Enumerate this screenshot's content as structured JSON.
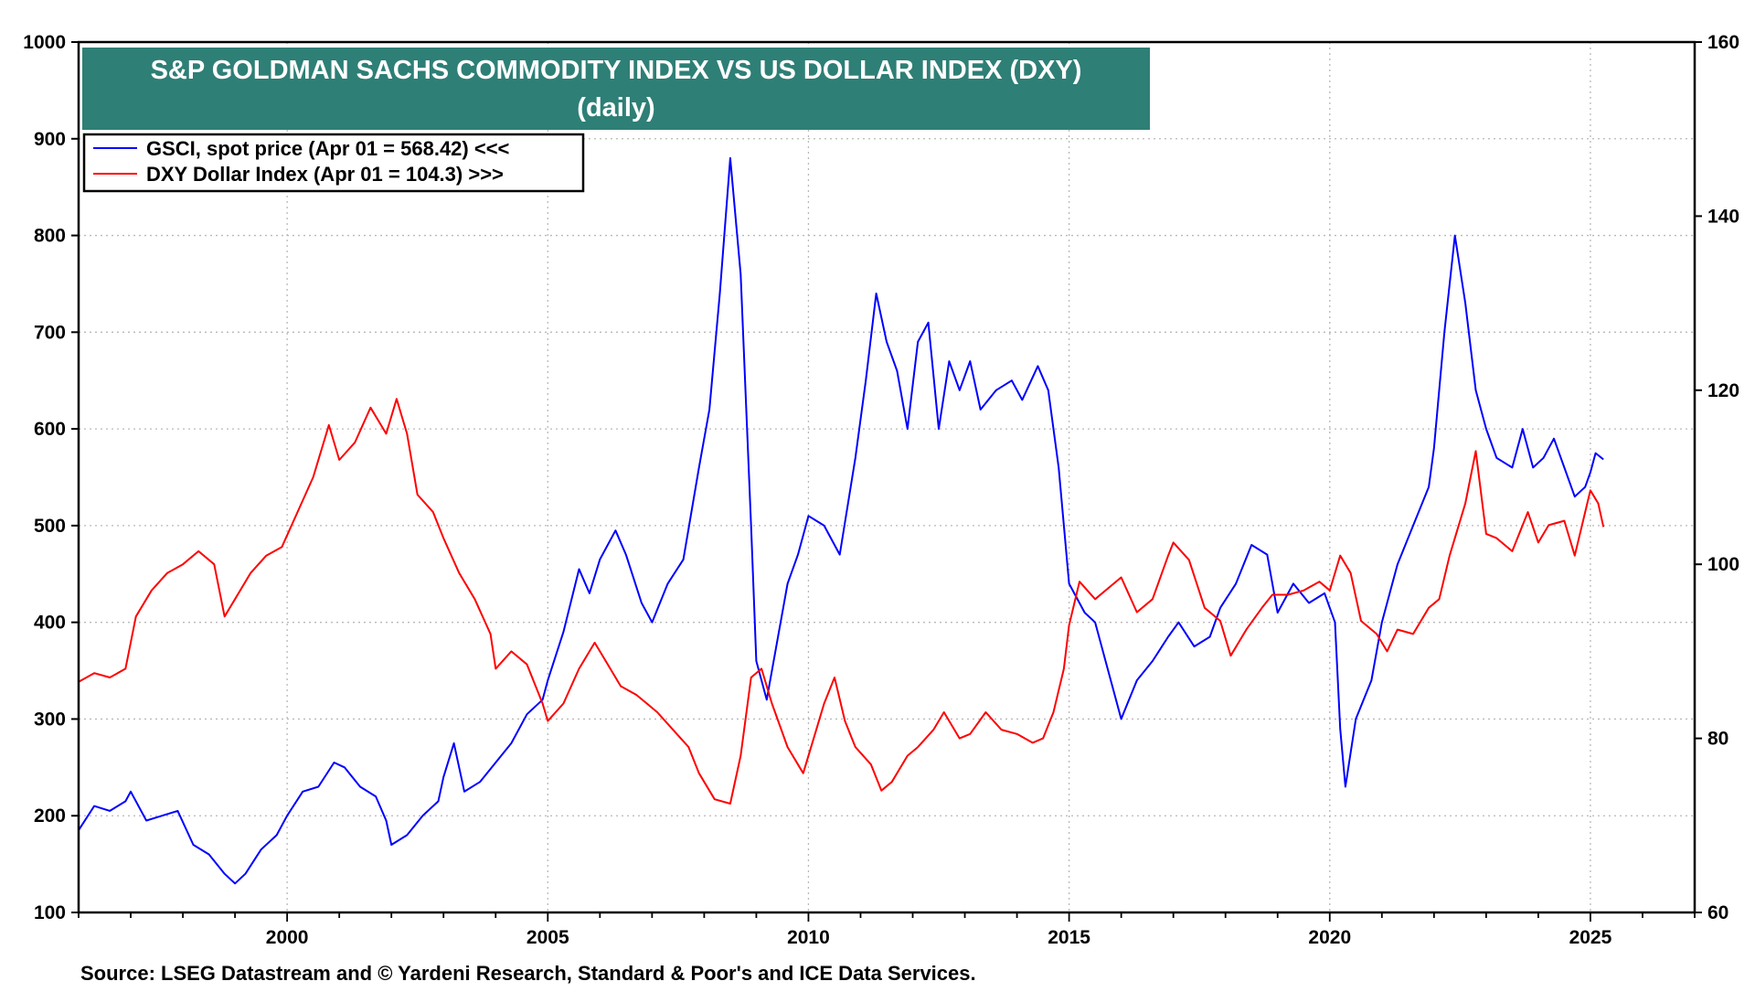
{
  "chart_data": {
    "type": "line",
    "title": "S&P GOLDMAN SACHS COMMODITY INDEX VS US DOLLAR INDEX (DXY)",
    "subtitle": "(daily)",
    "source": "Source: LSEG Datastream and © Yardeni Research, Standard & Poor's and ICE Data Services.",
    "x_range": [
      1996.0,
      2027.0
    ],
    "x_ticks": [
      2000,
      2005,
      2010,
      2015,
      2020,
      2025
    ],
    "grid": true,
    "legend_placement": "top-left",
    "y_left": {
      "range": [
        100,
        1000
      ],
      "ticks": [
        100,
        200,
        300,
        400,
        500,
        600,
        700,
        800,
        900,
        1000
      ]
    },
    "y_right": {
      "range": [
        60,
        160
      ],
      "ticks": [
        60,
        80,
        100,
        120,
        140,
        160
      ]
    },
    "series": [
      {
        "name": "GSCI, spot price (Apr 01 = 568.42) <<<",
        "axis": "left",
        "color": "#0000ff",
        "points": [
          [
            1996.0,
            185
          ],
          [
            1996.3,
            210
          ],
          [
            1996.6,
            205
          ],
          [
            1996.9,
            215
          ],
          [
            1997.0,
            225
          ],
          [
            1997.3,
            195
          ],
          [
            1997.6,
            200
          ],
          [
            1997.9,
            205
          ],
          [
            1998.2,
            170
          ],
          [
            1998.5,
            160
          ],
          [
            1998.8,
            140
          ],
          [
            1999.0,
            130
          ],
          [
            1999.2,
            140
          ],
          [
            1999.5,
            165
          ],
          [
            1999.8,
            180
          ],
          [
            2000.0,
            200
          ],
          [
            2000.3,
            225
          ],
          [
            2000.6,
            230
          ],
          [
            2000.9,
            255
          ],
          [
            2001.1,
            250
          ],
          [
            2001.4,
            230
          ],
          [
            2001.7,
            220
          ],
          [
            2001.9,
            195
          ],
          [
            2002.0,
            170
          ],
          [
            2002.3,
            180
          ],
          [
            2002.6,
            200
          ],
          [
            2002.9,
            215
          ],
          [
            2003.0,
            240
          ],
          [
            2003.2,
            275
          ],
          [
            2003.4,
            225
          ],
          [
            2003.7,
            235
          ],
          [
            2004.0,
            255
          ],
          [
            2004.3,
            275
          ],
          [
            2004.6,
            305
          ],
          [
            2004.9,
            320
          ],
          [
            2005.0,
            340
          ],
          [
            2005.3,
            390
          ],
          [
            2005.6,
            455
          ],
          [
            2005.8,
            430
          ],
          [
            2006.0,
            465
          ],
          [
            2006.3,
            495
          ],
          [
            2006.5,
            470
          ],
          [
            2006.8,
            420
          ],
          [
            2007.0,
            400
          ],
          [
            2007.3,
            440
          ],
          [
            2007.6,
            465
          ],
          [
            2007.9,
            560
          ],
          [
            2008.1,
            620
          ],
          [
            2008.3,
            740
          ],
          [
            2008.5,
            880
          ],
          [
            2008.7,
            760
          ],
          [
            2008.9,
            500
          ],
          [
            2009.0,
            360
          ],
          [
            2009.2,
            320
          ],
          [
            2009.4,
            380
          ],
          [
            2009.6,
            440
          ],
          [
            2009.8,
            470
          ],
          [
            2010.0,
            510
          ],
          [
            2010.3,
            500
          ],
          [
            2010.6,
            470
          ],
          [
            2010.9,
            570
          ],
          [
            2011.1,
            650
          ],
          [
            2011.3,
            740
          ],
          [
            2011.5,
            690
          ],
          [
            2011.7,
            660
          ],
          [
            2011.9,
            600
          ],
          [
            2012.1,
            690
          ],
          [
            2012.3,
            710
          ],
          [
            2012.5,
            600
          ],
          [
            2012.7,
            670
          ],
          [
            2012.9,
            640
          ],
          [
            2013.1,
            670
          ],
          [
            2013.3,
            620
          ],
          [
            2013.6,
            640
          ],
          [
            2013.9,
            650
          ],
          [
            2014.1,
            630
          ],
          [
            2014.4,
            665
          ],
          [
            2014.6,
            640
          ],
          [
            2014.8,
            560
          ],
          [
            2014.9,
            500
          ],
          [
            2015.0,
            440
          ],
          [
            2015.3,
            410
          ],
          [
            2015.5,
            400
          ],
          [
            2015.8,
            340
          ],
          [
            2016.0,
            300
          ],
          [
            2016.3,
            340
          ],
          [
            2016.6,
            360
          ],
          [
            2016.9,
            385
          ],
          [
            2017.1,
            400
          ],
          [
            2017.4,
            375
          ],
          [
            2017.7,
            385
          ],
          [
            2017.9,
            415
          ],
          [
            2018.2,
            440
          ],
          [
            2018.5,
            480
          ],
          [
            2018.8,
            470
          ],
          [
            2019.0,
            410
          ],
          [
            2019.3,
            440
          ],
          [
            2019.6,
            420
          ],
          [
            2019.9,
            430
          ],
          [
            2020.1,
            400
          ],
          [
            2020.2,
            290
          ],
          [
            2020.3,
            230
          ],
          [
            2020.5,
            300
          ],
          [
            2020.8,
            340
          ],
          [
            2021.0,
            400
          ],
          [
            2021.3,
            460
          ],
          [
            2021.6,
            500
          ],
          [
            2021.9,
            540
          ],
          [
            2022.0,
            580
          ],
          [
            2022.2,
            700
          ],
          [
            2022.4,
            800
          ],
          [
            2022.6,
            730
          ],
          [
            2022.8,
            640
          ],
          [
            2023.0,
            600
          ],
          [
            2023.2,
            570
          ],
          [
            2023.5,
            560
          ],
          [
            2023.7,
            600
          ],
          [
            2023.9,
            560
          ],
          [
            2024.1,
            570
          ],
          [
            2024.3,
            590
          ],
          [
            2024.5,
            560
          ],
          [
            2024.7,
            530
          ],
          [
            2024.9,
            540
          ],
          [
            2025.0,
            555
          ],
          [
            2025.1,
            575
          ],
          [
            2025.25,
            568.42
          ]
        ]
      },
      {
        "name": "DXY Dollar Index (Apr 01 = 104.3) >>>",
        "axis": "right",
        "color": "#ff0000",
        "points": [
          [
            1996.0,
            86.5
          ],
          [
            1996.3,
            87.5
          ],
          [
            1996.6,
            87.0
          ],
          [
            1996.9,
            88.0
          ],
          [
            1997.1,
            94.0
          ],
          [
            1997.4,
            97.0
          ],
          [
            1997.7,
            99.0
          ],
          [
            1998.0,
            100.0
          ],
          [
            1998.3,
            101.5
          ],
          [
            1998.6,
            100.0
          ],
          [
            1998.8,
            94.0
          ],
          [
            1999.0,
            96.0
          ],
          [
            1999.3,
            99.0
          ],
          [
            1999.6,
            101.0
          ],
          [
            1999.9,
            102.0
          ],
          [
            2000.2,
            106.0
          ],
          [
            2000.5,
            110.0
          ],
          [
            2000.8,
            116.0
          ],
          [
            2001.0,
            112.0
          ],
          [
            2001.3,
            114.0
          ],
          [
            2001.6,
            118.0
          ],
          [
            2001.9,
            115.0
          ],
          [
            2002.1,
            119.0
          ],
          [
            2002.3,
            115.0
          ],
          [
            2002.5,
            108.0
          ],
          [
            2002.8,
            106.0
          ],
          [
            2003.0,
            103.0
          ],
          [
            2003.3,
            99.0
          ],
          [
            2003.6,
            96.0
          ],
          [
            2003.9,
            92.0
          ],
          [
            2004.0,
            88.0
          ],
          [
            2004.3,
            90.0
          ],
          [
            2004.6,
            88.5
          ],
          [
            2004.9,
            84.0
          ],
          [
            2005.0,
            82.0
          ],
          [
            2005.3,
            84.0
          ],
          [
            2005.6,
            88.0
          ],
          [
            2005.9,
            91.0
          ],
          [
            2006.1,
            89.0
          ],
          [
            2006.4,
            86.0
          ],
          [
            2006.7,
            85.0
          ],
          [
            2006.9,
            84.0
          ],
          [
            2007.1,
            83.0
          ],
          [
            2007.4,
            81.0
          ],
          [
            2007.7,
            79.0
          ],
          [
            2007.9,
            76.0
          ],
          [
            2008.2,
            73.0
          ],
          [
            2008.5,
            72.5
          ],
          [
            2008.7,
            78.0
          ],
          [
            2008.9,
            87.0
          ],
          [
            2009.1,
            88.0
          ],
          [
            2009.3,
            84.0
          ],
          [
            2009.6,
            79.0
          ],
          [
            2009.9,
            76.0
          ],
          [
            2010.1,
            80.0
          ],
          [
            2010.3,
            84.0
          ],
          [
            2010.5,
            87.0
          ],
          [
            2010.7,
            82.0
          ],
          [
            2010.9,
            79.0
          ],
          [
            2011.2,
            77.0
          ],
          [
            2011.4,
            74.0
          ],
          [
            2011.6,
            75.0
          ],
          [
            2011.9,
            78.0
          ],
          [
            2012.1,
            79.0
          ],
          [
            2012.4,
            81.0
          ],
          [
            2012.6,
            83.0
          ],
          [
            2012.9,
            80.0
          ],
          [
            2013.1,
            80.5
          ],
          [
            2013.4,
            83.0
          ],
          [
            2013.7,
            81.0
          ],
          [
            2014.0,
            80.5
          ],
          [
            2014.3,
            79.5
          ],
          [
            2014.5,
            80.0
          ],
          [
            2014.7,
            83.0
          ],
          [
            2014.9,
            88.0
          ],
          [
            2015.0,
            93.0
          ],
          [
            2015.2,
            98.0
          ],
          [
            2015.5,
            96.0
          ],
          [
            2015.8,
            97.5
          ],
          [
            2016.0,
            98.5
          ],
          [
            2016.3,
            94.5
          ],
          [
            2016.6,
            96.0
          ],
          [
            2016.9,
            101.0
          ],
          [
            2017.0,
            102.5
          ],
          [
            2017.3,
            100.5
          ],
          [
            2017.6,
            95.0
          ],
          [
            2017.9,
            93.5
          ],
          [
            2018.1,
            89.5
          ],
          [
            2018.4,
            92.5
          ],
          [
            2018.7,
            95.0
          ],
          [
            2018.9,
            96.5
          ],
          [
            2019.2,
            96.5
          ],
          [
            2019.5,
            97.0
          ],
          [
            2019.8,
            98.0
          ],
          [
            2020.0,
            97.0
          ],
          [
            2020.2,
            101.0
          ],
          [
            2020.4,
            99.0
          ],
          [
            2020.6,
            93.5
          ],
          [
            2020.9,
            92.0
          ],
          [
            2021.1,
            90.0
          ],
          [
            2021.3,
            92.5
          ],
          [
            2021.6,
            92.0
          ],
          [
            2021.9,
            95.0
          ],
          [
            2022.1,
            96.0
          ],
          [
            2022.3,
            101.0
          ],
          [
            2022.6,
            107.0
          ],
          [
            2022.8,
            113.0
          ],
          [
            2023.0,
            103.5
          ],
          [
            2023.2,
            103.0
          ],
          [
            2023.5,
            101.5
          ],
          [
            2023.8,
            106.0
          ],
          [
            2024.0,
            102.5
          ],
          [
            2024.2,
            104.5
          ],
          [
            2024.5,
            105.0
          ],
          [
            2024.7,
            101.0
          ],
          [
            2024.9,
            106.0
          ],
          [
            2025.0,
            108.5
          ],
          [
            2025.15,
            107.0
          ],
          [
            2025.25,
            104.3
          ]
        ]
      }
    ]
  }
}
